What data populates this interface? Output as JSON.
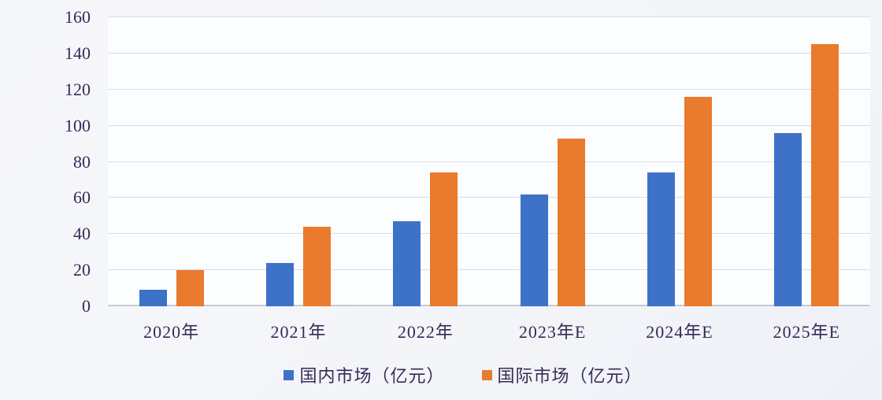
{
  "chart_data": {
    "type": "bar",
    "title": "",
    "xlabel": "",
    "ylabel": "",
    "categories": [
      "2020年",
      "2021年",
      "2022年",
      "2023年E",
      "2024年E",
      "2025年E"
    ],
    "series": [
      {
        "name": "国内市场（亿元）",
        "color": "#3E72C8",
        "values": [
          9,
          24,
          47,
          62,
          74,
          96
        ]
      },
      {
        "name": "国际市场（亿元）",
        "color": "#EA7A2D",
        "values": [
          20,
          44,
          74,
          93,
          116,
          145
        ]
      }
    ],
    "ylim": [
      0,
      160
    ],
    "yticks": [
      0,
      20,
      40,
      60,
      80,
      100,
      120,
      140,
      160
    ],
    "grid": true,
    "legend_position": "bottom"
  },
  "style": {
    "text_color": "#362a56",
    "grid_color": "#d9dde4",
    "axis_color": "#c5cbd3",
    "plot_background": "#fcfdfe",
    "page_background": "#f4f6f9"
  }
}
